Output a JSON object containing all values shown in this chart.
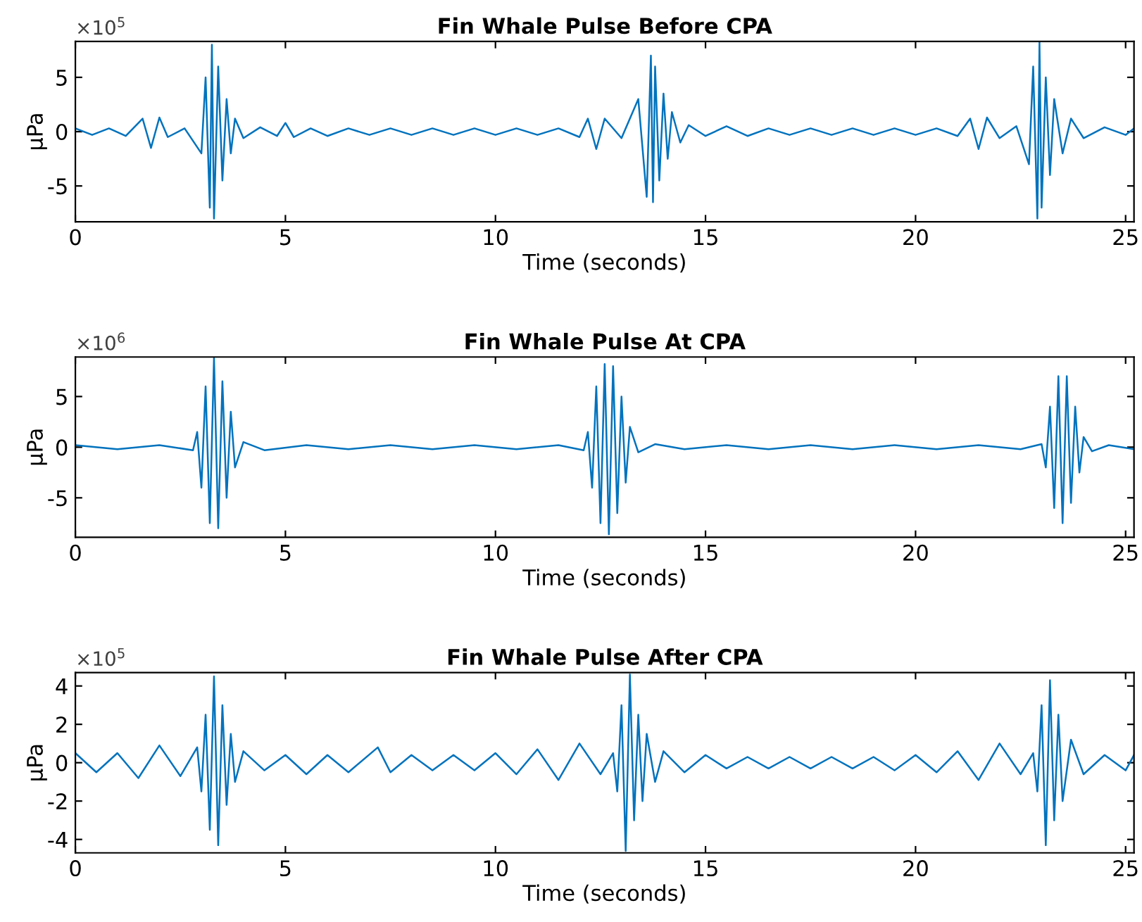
{
  "chart_data": [
    {
      "type": "line",
      "title": "Fin Whale Pulse Before CPA",
      "xlabel": "Time (seconds)",
      "ylabel": "μPa",
      "annotations": [
        "×10$^{5}$"
      ],
      "xlim": [
        0,
        25.2
      ],
      "xticks": [
        0,
        5,
        10,
        15,
        20,
        25
      ],
      "ylim": [
        -8.3,
        8.3
      ],
      "yticks": [
        -5,
        0,
        5
      ],
      "series": [
        {
          "color": "#0072bd",
          "x": [
            0,
            0.4,
            0.8,
            1.2,
            1.6,
            1.8,
            2.0,
            2.2,
            2.6,
            3.0,
            3.1,
            3.2,
            3.25,
            3.3,
            3.4,
            3.5,
            3.6,
            3.7,
            3.8,
            4.0,
            4.4,
            4.8,
            5.0,
            5.2,
            5.6,
            6.0,
            6.5,
            7,
            7.5,
            8,
            8.5,
            9,
            9.5,
            10,
            10.5,
            11,
            11.5,
            12,
            12.2,
            12.4,
            12.6,
            13,
            13.4,
            13.6,
            13.7,
            13.75,
            13.8,
            13.9,
            14.0,
            14.1,
            14.2,
            14.4,
            14.6,
            15,
            15.5,
            16,
            16.5,
            17,
            17.5,
            18,
            18.5,
            19,
            19.5,
            20,
            20.5,
            21,
            21.3,
            21.5,
            21.7,
            22,
            22.4,
            22.7,
            22.8,
            22.9,
            22.95,
            23.0,
            23.1,
            23.2,
            23.3,
            23.5,
            23.7,
            24,
            24.5,
            25,
            25.2
          ],
          "values": [
            0.3,
            -0.3,
            0.3,
            -0.4,
            1.2,
            -1.5,
            1.3,
            -0.5,
            0.3,
            -2,
            5,
            -7,
            8,
            -8,
            6,
            -4.5,
            3,
            -2,
            1.2,
            -0.6,
            0.4,
            -0.4,
            0.8,
            -0.5,
            0.3,
            -0.4,
            0.3,
            -0.3,
            0.3,
            -0.3,
            0.3,
            -0.3,
            0.3,
            -0.3,
            0.3,
            -0.3,
            0.3,
            -0.5,
            1.2,
            -1.6,
            1.2,
            -0.6,
            3,
            -6,
            7,
            -6.5,
            6,
            -4.5,
            3.5,
            -2.5,
            1.8,
            -1,
            0.6,
            -0.4,
            0.5,
            -0.4,
            0.3,
            -0.3,
            0.3,
            -0.3,
            0.3,
            -0.3,
            0.3,
            -0.3,
            0.3,
            -0.4,
            1.2,
            -1.6,
            1.3,
            -0.6,
            0.5,
            -3,
            6,
            -8,
            8.2,
            -7,
            5,
            -4,
            3,
            -2,
            1.2,
            -0.6,
            0.4,
            -0.3,
            0.3
          ]
        }
      ]
    },
    {
      "type": "line",
      "title": "Fin Whale Pulse At CPA",
      "xlabel": "Time (seconds)",
      "ylabel": "μPa",
      "annotations": [
        "×10$^{6}$"
      ],
      "xlim": [
        0,
        25.2
      ],
      "xticks": [
        0,
        5,
        10,
        15,
        20,
        25
      ],
      "ylim": [
        -8.9,
        8.9
      ],
      "yticks": [
        -5,
        0,
        5
      ],
      "series": [
        {
          "color": "#0072bd",
          "x": [
            0,
            1,
            2,
            2.8,
            2.9,
            3.0,
            3.1,
            3.2,
            3.3,
            3.4,
            3.5,
            3.6,
            3.7,
            3.8,
            4.0,
            4.5,
            5.5,
            6.5,
            7.5,
            8.5,
            9.5,
            10.5,
            11.5,
            12.1,
            12.2,
            12.3,
            12.4,
            12.5,
            12.6,
            12.7,
            12.8,
            12.9,
            13.0,
            13.1,
            13.2,
            13.4,
            13.8,
            14.5,
            15.5,
            16.5,
            17.5,
            18.5,
            19.5,
            20.5,
            21.5,
            22.5,
            23.0,
            23.1,
            23.2,
            23.3,
            23.4,
            23.5,
            23.6,
            23.7,
            23.8,
            23.9,
            24.0,
            24.2,
            24.6,
            25.2
          ],
          "values": [
            0.2,
            -0.2,
            0.2,
            -0.3,
            1.5,
            -4,
            6,
            -7.5,
            8.8,
            -8,
            6.5,
            -5,
            3.5,
            -2,
            0.5,
            -0.3,
            0.2,
            -0.2,
            0.2,
            -0.2,
            0.2,
            -0.2,
            0.2,
            -0.3,
            1.5,
            -4,
            6,
            -7.5,
            8.2,
            -8.6,
            8,
            -6.5,
            5,
            -3.5,
            2,
            -0.5,
            0.3,
            -0.2,
            0.2,
            -0.2,
            0.2,
            -0.2,
            0.2,
            -0.2,
            0.2,
            -0.2,
            0.3,
            -2,
            4,
            -6,
            7,
            -7.5,
            7,
            -5.5,
            4,
            -2.5,
            1,
            -0.4,
            0.2,
            -0.2
          ]
        }
      ]
    },
    {
      "type": "line",
      "title": "Fin Whale Pulse After CPA",
      "xlabel": "Time (seconds)",
      "ylabel": "μPa",
      "annotations": [
        "×10$^{5}$"
      ],
      "xlim": [
        0,
        25.2
      ],
      "xticks": [
        0,
        5,
        10,
        15,
        20,
        25
      ],
      "ylim": [
        -4.7,
        4.7
      ],
      "yticks": [
        -4,
        -2,
        0,
        2,
        4
      ],
      "series": [
        {
          "color": "#0072bd",
          "x": [
            0,
            0.5,
            1.0,
            1.5,
            2.0,
            2.5,
            2.9,
            3.0,
            3.1,
            3.2,
            3.3,
            3.4,
            3.5,
            3.6,
            3.7,
            3.8,
            4.0,
            4.5,
            5,
            5.5,
            6,
            6.5,
            7.2,
            7.5,
            8,
            8.5,
            9,
            9.5,
            10,
            10.5,
            11,
            11.5,
            12,
            12.5,
            12.8,
            12.9,
            13.0,
            13.1,
            13.2,
            13.3,
            13.4,
            13.5,
            13.6,
            13.8,
            14,
            14.5,
            15,
            15.5,
            16,
            16.5,
            17,
            17.5,
            18,
            18.5,
            19,
            19.5,
            20,
            20.5,
            21,
            21.5,
            22,
            22.5,
            22.8,
            22.9,
            23.0,
            23.1,
            23.2,
            23.3,
            23.4,
            23.5,
            23.7,
            24,
            24.5,
            25,
            25.2
          ],
          "values": [
            0.5,
            -0.5,
            0.5,
            -0.8,
            0.9,
            -0.7,
            0.8,
            -1.5,
            2.5,
            -3.5,
            4.5,
            -4.3,
            3,
            -2.2,
            1.5,
            -1,
            0.6,
            -0.4,
            0.4,
            -0.6,
            0.4,
            -0.5,
            0.8,
            -0.5,
            0.4,
            -0.4,
            0.4,
            -0.4,
            0.5,
            -0.6,
            0.7,
            -0.9,
            1.0,
            -0.6,
            0.5,
            -1.5,
            3,
            -4.6,
            4.6,
            -3,
            2.5,
            -2,
            1.5,
            -1,
            0.6,
            -0.5,
            0.4,
            -0.3,
            0.3,
            -0.3,
            0.3,
            -0.3,
            0.3,
            -0.3,
            0.3,
            -0.4,
            0.4,
            -0.5,
            0.6,
            -0.9,
            1,
            -0.6,
            0.5,
            -1.5,
            3,
            -4.3,
            4.3,
            -3,
            2.5,
            -2,
            1.2,
            -0.6,
            0.4,
            -0.4,
            0.4
          ]
        }
      ]
    }
  ]
}
